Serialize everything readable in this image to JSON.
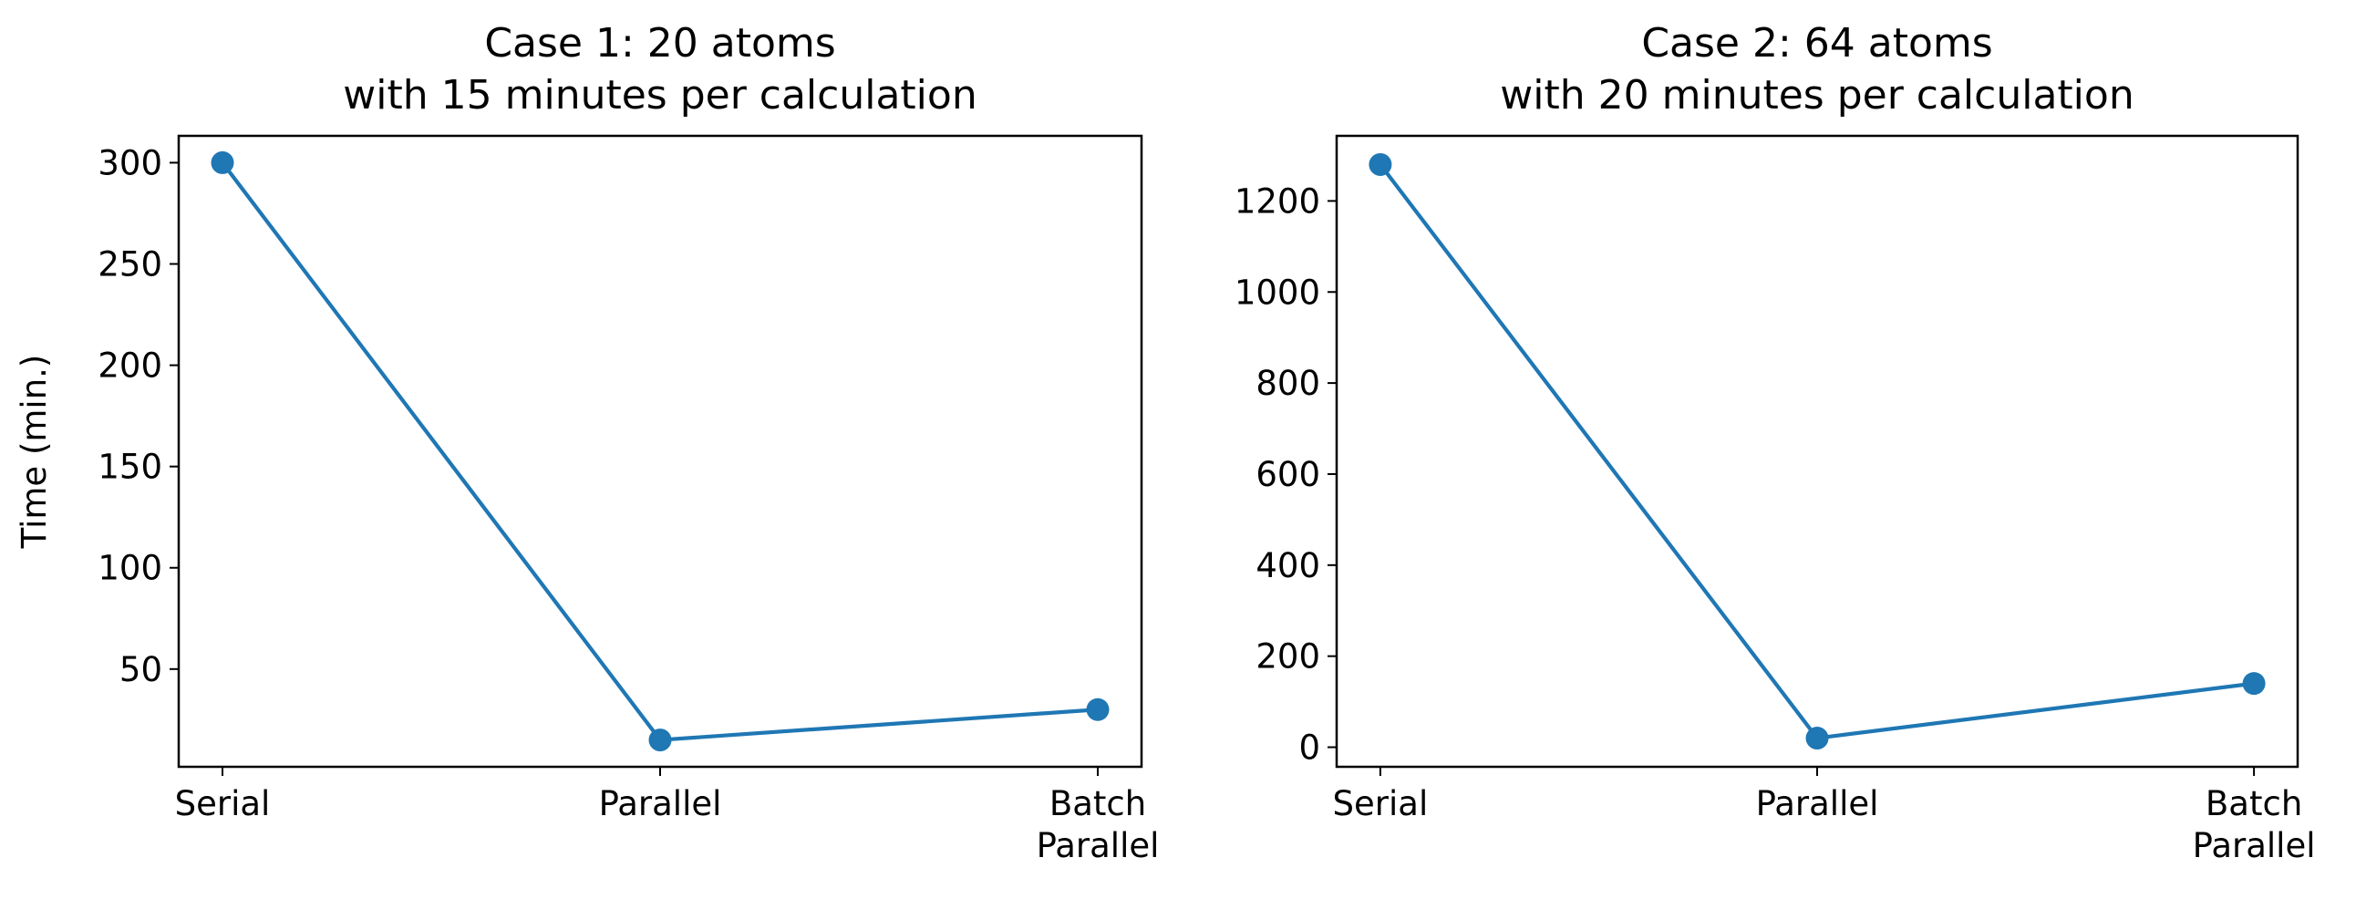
{
  "colors": {
    "series": "#1f77b4",
    "axes": "#000000",
    "background": "#ffffff"
  },
  "chart_data": [
    {
      "type": "line",
      "title": [
        "Case 1: 20 atoms",
        "with 15 minutes per calculation"
      ],
      "xlabel": "",
      "ylabel": "Time (min.)",
      "categories": [
        [
          "Serial"
        ],
        [
          "Parallel"
        ],
        [
          "Batch",
          "Parallel"
        ]
      ],
      "values": [
        300,
        15,
        30
      ],
      "yticks": [
        50,
        100,
        150,
        200,
        250,
        300
      ],
      "ylim": [
        1.75,
        313.25
      ],
      "grid": false,
      "marker": "circle"
    },
    {
      "type": "line",
      "title": [
        "Case 2: 64 atoms",
        "with 20 minutes per calculation"
      ],
      "xlabel": "",
      "ylabel": "",
      "categories": [
        [
          "Serial"
        ],
        [
          "Parallel"
        ],
        [
          "Batch",
          "Parallel"
        ]
      ],
      "values": [
        1280,
        20,
        140
      ],
      "yticks": [
        0,
        200,
        400,
        600,
        800,
        1000,
        1200
      ],
      "ylim": [
        -43,
        1343
      ],
      "grid": false,
      "marker": "circle"
    }
  ]
}
